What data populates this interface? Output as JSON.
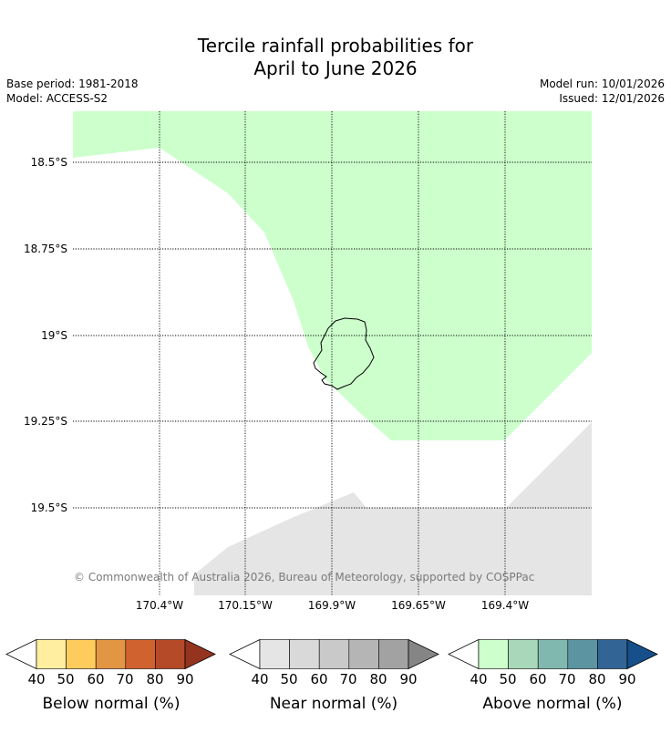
{
  "title_line1": "Tercile rainfall probabilities for",
  "title_line2": "April to June 2026",
  "base_period": "Base period: 1981-2018",
  "model": "Model: ACCESS-S2",
  "model_run": "Model run: 10/01/2026",
  "issued": "Issued: 12/01/2026",
  "lat_labels": [
    "18.5°S",
    "18.75°S",
    "19°S",
    "19.25°S",
    "19.5°S"
  ],
  "lon_labels": [
    "170.4°W",
    "170.15°W",
    "169.9°W",
    "169.65°W",
    "169.4°W"
  ],
  "copyright": "© Commonwealth of Australia 2026, Bureau of Meteorology, supported by COSPPac",
  "map_colors": {
    "above_40": "#ccffcc",
    "near_40": "#e5e5e5",
    "coast": "#000000"
  },
  "map_regions": {
    "above_normal": "40-50%",
    "near_normal": "40-50%"
  },
  "colorbars": [
    {
      "title": "Below normal (%)",
      "ticks": [
        "40",
        "50",
        "60",
        "70",
        "80",
        "90"
      ],
      "colors": [
        "#ffeda0",
        "#fecc5c",
        "#e29543",
        "#d0622f",
        "#b44a28",
        "#94341f"
      ]
    },
    {
      "title": "Near normal (%)",
      "ticks": [
        "40",
        "50",
        "60",
        "70",
        "80",
        "90"
      ],
      "colors": [
        "#e5e5e5",
        "#d9d9d9",
        "#c9c9c9",
        "#b5b5b5",
        "#a2a2a2",
        "#858585"
      ]
    },
    {
      "title": "Above normal (%)",
      "ticks": [
        "40",
        "50",
        "60",
        "70",
        "80",
        "90"
      ],
      "colors": [
        "#ccffcc",
        "#a8d8b9",
        "#80b8b0",
        "#5c94a2",
        "#326596",
        "#164f8a"
      ]
    }
  ]
}
